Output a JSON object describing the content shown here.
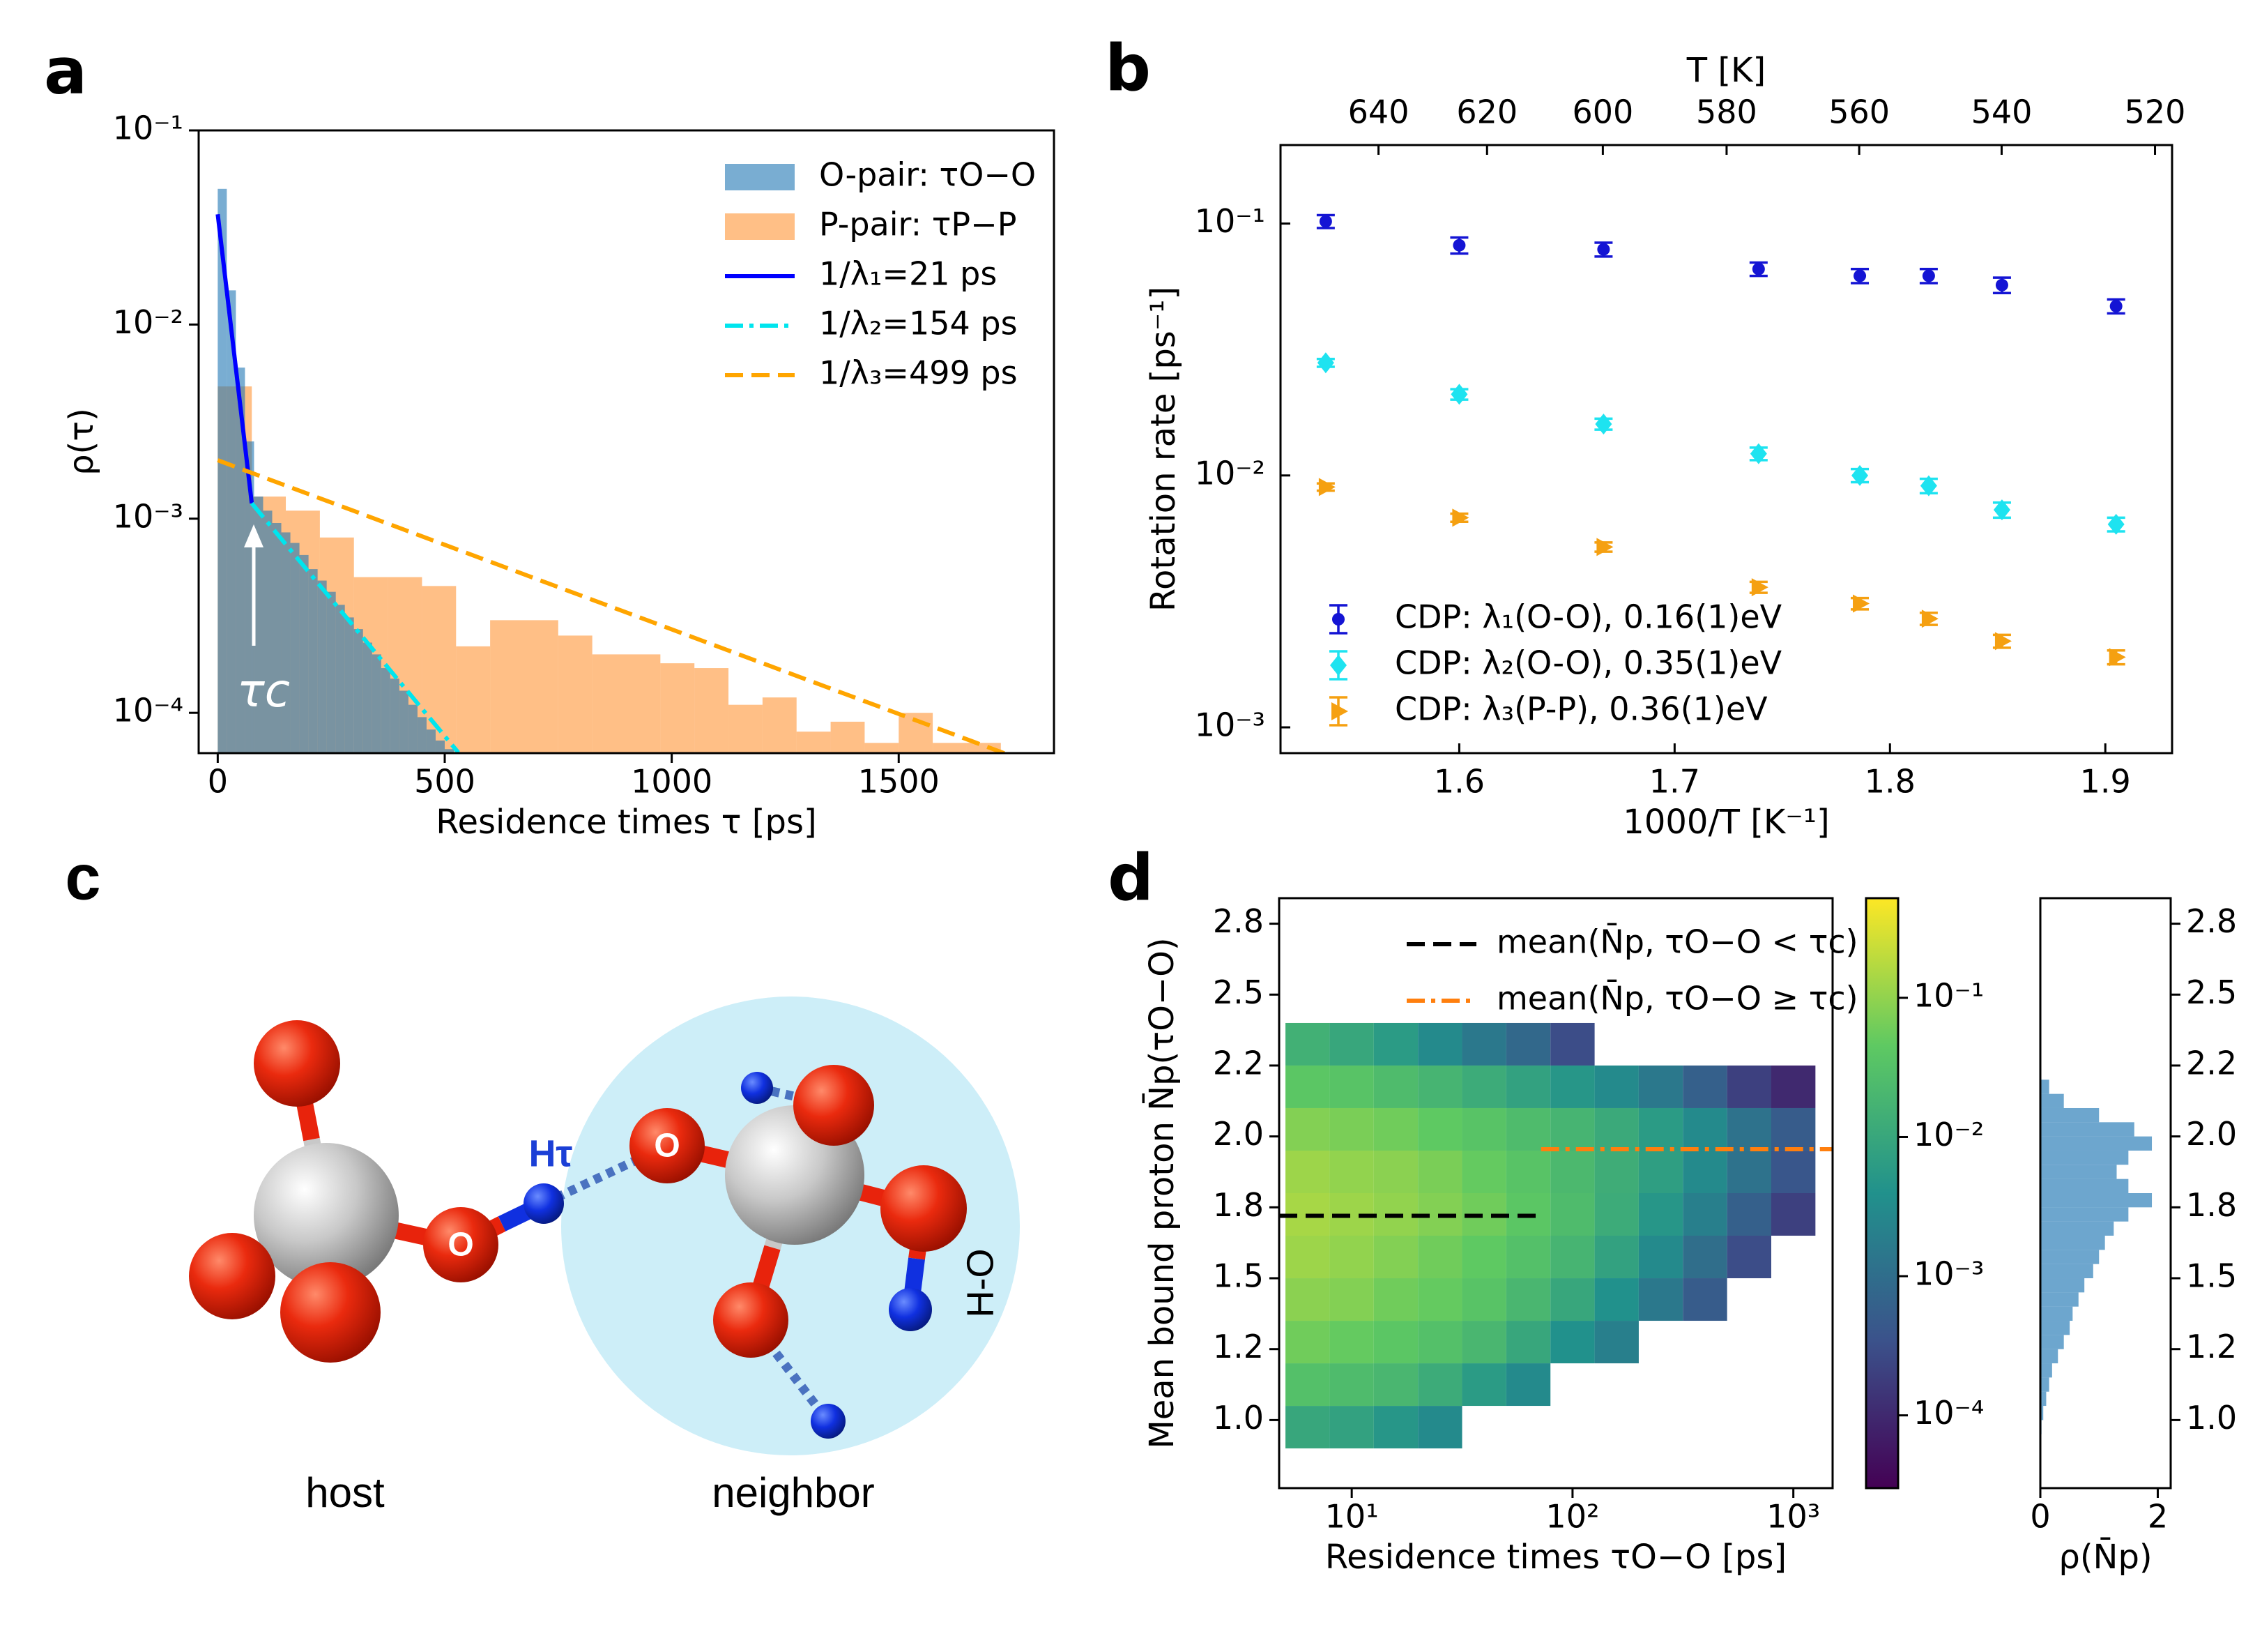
{
  "chart_data": [
    {
      "type": "histogram",
      "panel_label": "a",
      "xlabel": "Residence times τ [ps]",
      "ylabel": "ρ(τ)",
      "xlim": [
        -42,
        1842
      ],
      "xticks": [
        0,
        500,
        1000,
        1500
      ],
      "ylim": [
        6.2e-05,
        0.1
      ],
      "yscale": "log",
      "yticks": [
        {
          "value": 0.0001,
          "label": "10⁻⁴"
        },
        {
          "value": 0.001,
          "label": "10⁻³"
        },
        {
          "value": 0.01,
          "label": "10⁻²"
        },
        {
          "value": 0.1,
          "label": "10⁻¹"
        }
      ],
      "legend": "upper right",
      "annotation": "τc",
      "series": [
        {
          "name": "O-pair: τO−O",
          "kind": "bars",
          "color": "#1f77b4",
          "alpha": 0.6,
          "bins": [
            0,
            20,
            40,
            60,
            80,
            100,
            120,
            140,
            160,
            180,
            200,
            220,
            240,
            260,
            280,
            300,
            320,
            340,
            360,
            380,
            400,
            420,
            440,
            460,
            480,
            500,
            520
          ],
          "values": [
            0.05,
            0.015,
            0.006,
            0.0025,
            0.0013,
            0.0011,
            0.00095,
            0.00085,
            0.00075,
            0.00065,
            0.00055,
            0.00048,
            0.00042,
            0.00036,
            0.00031,
            0.00027,
            0.00023,
            0.0002,
            0.00017,
            0.00015,
            0.00013,
            0.00011,
            9.5e-05,
            8.2e-05,
            7.2e-05,
            6.5e-05
          ]
        },
        {
          "name": "P-pair: τP−P",
          "kind": "bars",
          "color": "#ff7f0e",
          "alpha": 0.5,
          "bins": [
            0,
            75,
            150,
            225,
            300,
            375,
            450,
            525,
            600,
            675,
            750,
            825,
            900,
            975,
            1050,
            1125,
            1200,
            1275,
            1350,
            1425,
            1500,
            1575,
            1650,
            1725
          ],
          "values": [
            0.0048,
            0.0013,
            0.0011,
            0.0008,
            0.0005,
            0.0005,
            0.00045,
            0.00022,
            0.0003,
            0.0003,
            0.00025,
            0.0002,
            0.0002,
            0.00018,
            0.00017,
            0.00011,
            0.00012,
            8e-05,
            9e-05,
            7e-05,
            0.0001,
            7e-05,
            7e-05
          ]
        },
        {
          "name": "1/λ₁=21 ps",
          "kind": "line",
          "style": "solid",
          "color": "#0000ff",
          "x": [
            0,
            75
          ],
          "values": [
            0.037,
            0.0012
          ]
        },
        {
          "name": "1/λ₂=154 ps",
          "kind": "line",
          "style": "dashdot",
          "color": "#00e5ee",
          "x": [
            75,
            530
          ],
          "values": [
            0.0012,
            6.24e-05
          ]
        },
        {
          "name": "1/λ₃=499 ps",
          "kind": "line",
          "style": "dashed",
          "color": "#ffa500",
          "x": [
            0,
            1740
          ],
          "values": [
            0.002,
            6.1e-05
          ]
        }
      ]
    },
    {
      "type": "errorbar",
      "panel_label": "b",
      "xlabel": "1000/T [K⁻¹]",
      "ylabel": "Rotation rate [ps⁻¹]",
      "x2label": "T [K]",
      "x2scale": "reciprocal",
      "x2ticks": [
        640,
        620,
        600,
        580,
        560,
        540,
        520
      ],
      "xlim": [
        1.517,
        1.931
      ],
      "xticks": [
        1.6,
        1.7,
        1.8,
        1.9
      ],
      "ylim": [
        0.00079,
        0.205
      ],
      "yscale": "log",
      "yticks": [
        {
          "value": 0.001,
          "label": "10⁻³"
        },
        {
          "value": 0.01,
          "label": "10⁻²"
        },
        {
          "value": 0.1,
          "label": "10⁻¹"
        }
      ],
      "tick_direction": "in",
      "legend": "lower left",
      "x": [
        1.538,
        1.6,
        1.667,
        1.739,
        1.786,
        1.818,
        1.852,
        1.905
      ],
      "series": [
        {
          "name": "CDP: λ₁(O-O), 0.16(1)eV",
          "color": "#1414d4",
          "marker": "circle",
          "values": [
            0.102,
            0.082,
            0.079,
            0.066,
            0.062,
            0.062,
            0.057,
            0.047
          ],
          "errors": [
            0.006,
            0.006,
            0.005,
            0.004,
            0.004,
            0.004,
            0.004,
            0.003
          ]
        },
        {
          "name": "CDP: λ₂(O-O), 0.35(1)eV",
          "color": "#1ee3f0",
          "marker": "diamond",
          "values": [
            0.028,
            0.021,
            0.016,
            0.0122,
            0.01,
            0.0091,
            0.0073,
            0.0064
          ],
          "errors": [
            0.001,
            0.001,
            0.0008,
            0.0007,
            0.0006,
            0.0006,
            0.0005,
            0.0004
          ]
        },
        {
          "name": "CDP: λ₃(P-P), 0.36(1)eV",
          "color": "#f5a011",
          "marker": "triangle-right",
          "values": [
            0.009,
            0.0068,
            0.0052,
            0.0036,
            0.0031,
            0.0027,
            0.0022,
            0.0019
          ],
          "errors": [
            0.0003,
            0.00025,
            0.00022,
            0.00018,
            0.00016,
            0.00015,
            0.00013,
            0.00012
          ]
        }
      ]
    },
    {
      "type": "heatmap",
      "panel_label": "d",
      "xlabel": "Residence times τO−O [ps]",
      "ylabel": "Mean bound proton N̄p(τO−O)",
      "xscale": "log",
      "xlim": [
        4.69,
        1506
      ],
      "xticks": [
        {
          "value": 10,
          "label": "10¹"
        },
        {
          "value": 100,
          "label": "10²"
        },
        {
          "value": 1000,
          "label": "10³"
        }
      ],
      "ylim": [
        0.76,
        2.84
      ],
      "yticks": [
        {
          "value": 1,
          "label": "1.0"
        },
        {
          "value": 1.25,
          "label": "1.2"
        },
        1.5,
        {
          "value": 1.75,
          "label": "1.8"
        },
        {
          "value": 2,
          "label": "2.0"
        },
        {
          "value": 2.25,
          "label": "2.2"
        },
        2.5,
        {
          "value": 2.75,
          "label": "2.8"
        }
      ],
      "colormap": "viridis",
      "x_edges": [
        5.01,
        7.94,
        12.59,
        19.95,
        31.62,
        50.12,
        79.43,
        125.9,
        199.5,
        316.2,
        501.2,
        794.3,
        1259
      ],
      "y_edges": [
        0.9,
        1.05,
        1.2,
        1.35,
        1.5,
        1.65,
        1.8,
        1.95,
        2.1,
        2.25,
        2.4
      ],
      "z": [
        [
          0.01,
          0.008,
          0.005,
          0.003,
          null,
          null,
          null,
          null,
          null,
          null,
          null,
          null
        ],
        [
          0.03,
          0.025,
          0.02,
          0.012,
          0.006,
          0.003,
          null,
          null,
          null,
          null,
          null,
          null
        ],
        [
          0.06,
          0.05,
          0.04,
          0.03,
          0.02,
          0.01,
          0.004,
          0.002,
          null,
          null,
          null,
          null
        ],
        [
          0.09,
          0.08,
          0.06,
          0.05,
          0.035,
          0.02,
          0.01,
          0.004,
          0.0015,
          0.0005,
          null,
          null
        ],
        [
          0.12,
          0.1,
          0.08,
          0.06,
          0.045,
          0.03,
          0.018,
          0.008,
          0.003,
          0.001,
          0.0003,
          null
        ],
        [
          0.14,
          0.12,
          0.1,
          0.08,
          0.06,
          0.04,
          0.025,
          0.012,
          0.005,
          0.002,
          0.0006,
          0.0002
        ],
        [
          0.12,
          0.1,
          0.09,
          0.07,
          0.05,
          0.035,
          0.022,
          0.013,
          0.007,
          0.003,
          0.0012,
          0.0004
        ],
        [
          0.08,
          0.07,
          0.06,
          0.045,
          0.035,
          0.025,
          0.018,
          0.011,
          0.006,
          0.003,
          0.0012,
          0.0005
        ],
        [
          0.04,
          0.035,
          0.025,
          0.018,
          0.012,
          0.008,
          0.005,
          0.003,
          0.0015,
          0.0006,
          0.0002,
          0.0001
        ],
        [
          0.015,
          0.01,
          0.006,
          0.003,
          0.0015,
          0.0008,
          0.0003,
          null,
          null,
          null,
          null,
          null
        ]
      ],
      "colorbar": {
        "lim": [
          3e-05,
          0.52
        ],
        "scale": "log",
        "ticks": [
          {
            "value": 0.0001,
            "label": "10⁻⁴"
          },
          {
            "value": 0.001,
            "label": "10⁻³"
          },
          {
            "value": 0.01,
            "label": "10⁻²"
          },
          {
            "value": 0.1,
            "label": "10⁻¹"
          }
        ]
      },
      "legend": "upper right",
      "series": [
        {
          "name": "mean(N̄p, τO−O < τc)",
          "style": "dashed",
          "color": "#000000",
          "x": [
            4.69,
            72
          ],
          "values": [
            1.72,
            1.72
          ]
        },
        {
          "name": "mean(N̄p, τO−O ≥ τc)",
          "style": "dashdot",
          "color": "#ff7f0e",
          "x": [
            72,
            1506
          ],
          "values": [
            1.955,
            1.955
          ]
        }
      ]
    },
    {
      "type": "histogram",
      "orientation": "horizontal",
      "xlabel": "ρ(N̄p)",
      "xlim": [
        0,
        2.22
      ],
      "xticks": [
        0,
        2
      ],
      "ylim": [
        0.76,
        2.84
      ],
      "yaxis_side": "right",
      "yticks": [
        {
          "value": 1,
          "label": "1.0"
        },
        {
          "value": 1.25,
          "label": "1.2"
        },
        1.5,
        {
          "value": 1.75,
          "label": "1.8"
        },
        {
          "value": 2,
          "label": "2.0"
        },
        {
          "value": 2.25,
          "label": "2.2"
        },
        2.5,
        {
          "value": 2.75,
          "label": "2.8"
        }
      ],
      "series": [
        {
          "kind": "bars",
          "color": "#1f77b4",
          "alpha": 0.65,
          "bins": [
            0.95,
            1,
            1.05,
            1.1,
            1.15,
            1.2,
            1.25,
            1.3,
            1.35,
            1.4,
            1.45,
            1.5,
            1.55,
            1.6,
            1.65,
            1.7,
            1.75,
            1.8,
            1.85,
            1.9,
            1.95,
            2,
            2.05,
            2.1,
            2.15,
            2.2
          ],
          "values": [
            0.02,
            0.05,
            0.1,
            0.15,
            0.2,
            0.3,
            0.4,
            0.5,
            0.55,
            0.65,
            0.75,
            0.9,
            1.0,
            1.1,
            1.25,
            1.5,
            1.9,
            1.5,
            1.3,
            1.5,
            1.9,
            1.6,
            1.0,
            0.4,
            0.15
          ]
        }
      ]
    }
  ],
  "diagram": {
    "panel_label": "c",
    "h_tau": "Hτ",
    "host_o": "O",
    "neighbor_o": "O",
    "h_o": "H-O",
    "host": "host",
    "neighbor": "neighbor"
  }
}
